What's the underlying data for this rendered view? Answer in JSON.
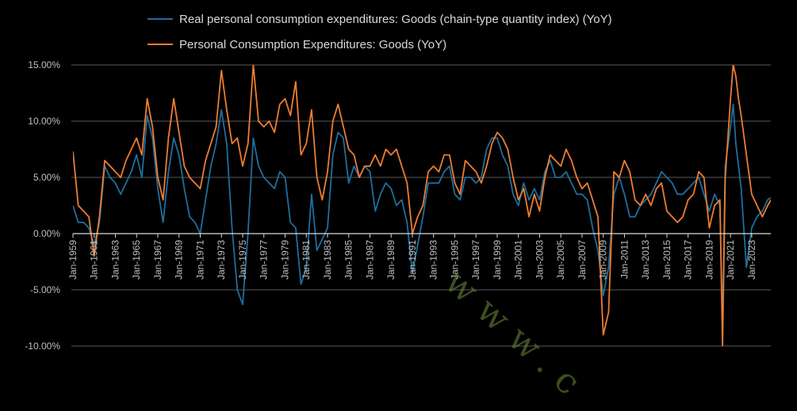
{
  "chart_data": {
    "type": "line",
    "title": "",
    "xlabel": "",
    "ylabel": "",
    "ylim": [
      -10,
      15
    ],
    "xlim": [
      1959,
      2024.8
    ],
    "y_ticks": [
      15,
      10,
      5,
      0,
      -5,
      -10
    ],
    "y_tick_labels": [
      "15.00%",
      "10.00%",
      "5.00%",
      "0.00%",
      "-5.00%",
      "-10.00%"
    ],
    "x_ticks": [
      1959,
      1961,
      1963,
      1965,
      1967,
      1969,
      1971,
      1973,
      1975,
      1977,
      1979,
      1981,
      1983,
      1985,
      1987,
      1989,
      1991,
      1993,
      1995,
      1997,
      1999,
      2001,
      2003,
      2005,
      2007,
      2009,
      2011,
      2013,
      2015,
      2017,
      2019,
      2021,
      2023
    ],
    "x_tick_labels": [
      "Jan-1959",
      "Jan-1961",
      "Jan-1963",
      "Jan-1965",
      "Jan-1967",
      "Jan-1969",
      "Jan-1971",
      "Jan-1973",
      "Jan-1975",
      "Jan-1977",
      "Jan-1979",
      "Jan-1981",
      "Jan-1983",
      "Jan-1985",
      "Jan-1987",
      "Jan-1989",
      "Jan-1991",
      "Jan-1993",
      "Jan-1995",
      "Jan-1997",
      "Jan-1999",
      "Jan-2001",
      "Jan-2003",
      "Jan-2005",
      "Jan-2007",
      "Jan-2009",
      "Jan-2011",
      "Jan-2013",
      "Jan-2015",
      "Jan-2017",
      "Jan-2019",
      "Jan-2021",
      "Jan-2023"
    ],
    "grid": true,
    "legend_position": "top",
    "series": [
      {
        "name": "Real personal consumption expenditures: Goods (chain-type quantity index) (YoY)",
        "color": "#1f6e9c",
        "points": [
          [
            1959,
            2.5
          ],
          [
            1959.5,
            1.0
          ],
          [
            1960,
            1.0
          ],
          [
            1960.5,
            0.5
          ],
          [
            1961,
            -1.0
          ],
          [
            1961.5,
            1.0
          ],
          [
            1962,
            6.0
          ],
          [
            1962.5,
            5.0
          ],
          [
            1963,
            4.5
          ],
          [
            1963.5,
            3.5
          ],
          [
            1964,
            4.5
          ],
          [
            1964.5,
            5.5
          ],
          [
            1965,
            7.0
          ],
          [
            1965.5,
            5.0
          ],
          [
            1966,
            10.5
          ],
          [
            1966.5,
            8.5
          ],
          [
            1967,
            4.0
          ],
          [
            1967.5,
            1.0
          ],
          [
            1968,
            5.5
          ],
          [
            1968.5,
            8.5
          ],
          [
            1969,
            7.0
          ],
          [
            1969.5,
            4.0
          ],
          [
            1970,
            1.5
          ],
          [
            1970.5,
            1.0
          ],
          [
            1971,
            0.0
          ],
          [
            1971.5,
            3.0
          ],
          [
            1972,
            6.0
          ],
          [
            1972.5,
            8.0
          ],
          [
            1973,
            11.0
          ],
          [
            1973.5,
            8.0
          ],
          [
            1974,
            0.5
          ],
          [
            1974.5,
            -5.0
          ],
          [
            1975,
            -6.3
          ],
          [
            1975.5,
            0.0
          ],
          [
            1976,
            8.5
          ],
          [
            1976.5,
            6.0
          ],
          [
            1977,
            5.0
          ],
          [
            1977.5,
            4.5
          ],
          [
            1978,
            4.0
          ],
          [
            1978.5,
            5.5
          ],
          [
            1979,
            5.0
          ],
          [
            1979.5,
            1.0
          ],
          [
            1980,
            0.5
          ],
          [
            1980.5,
            -4.5
          ],
          [
            1981,
            -3.0
          ],
          [
            1981.5,
            3.5
          ],
          [
            1982,
            -1.5
          ],
          [
            1982.5,
            -0.5
          ],
          [
            1983,
            0.5
          ],
          [
            1983.5,
            7.0
          ],
          [
            1984,
            9.0
          ],
          [
            1984.5,
            8.5
          ],
          [
            1985,
            4.5
          ],
          [
            1985.5,
            6.0
          ],
          [
            1986,
            5.0
          ],
          [
            1986.5,
            6.0
          ],
          [
            1987,
            5.5
          ],
          [
            1987.5,
            2.0
          ],
          [
            1988,
            3.5
          ],
          [
            1988.5,
            4.5
          ],
          [
            1989,
            4.0
          ],
          [
            1989.5,
            2.5
          ],
          [
            1990,
            3.0
          ],
          [
            1990.5,
            1.0
          ],
          [
            1991,
            -3.5
          ],
          [
            1991.5,
            -1.0
          ],
          [
            1992,
            1.5
          ],
          [
            1992.5,
            4.5
          ],
          [
            1993,
            4.5
          ],
          [
            1993.5,
            4.5
          ],
          [
            1994,
            5.5
          ],
          [
            1994.5,
            6.0
          ],
          [
            1995,
            3.5
          ],
          [
            1995.5,
            3.0
          ],
          [
            1996,
            5.0
          ],
          [
            1996.5,
            5.0
          ],
          [
            1997,
            4.5
          ],
          [
            1997.5,
            5.0
          ],
          [
            1998,
            7.5
          ],
          [
            1998.5,
            8.5
          ],
          [
            1999,
            8.5
          ],
          [
            1999.5,
            7.0
          ],
          [
            2000,
            6.0
          ],
          [
            2000.5,
            3.5
          ],
          [
            2001,
            2.5
          ],
          [
            2001.5,
            4.5
          ],
          [
            2002,
            3.0
          ],
          [
            2002.5,
            4.0
          ],
          [
            2003,
            3.0
          ],
          [
            2003.5,
            5.5
          ],
          [
            2004,
            6.5
          ],
          [
            2004.5,
            5.0
          ],
          [
            2005,
            5.0
          ],
          [
            2005.5,
            5.5
          ],
          [
            2006,
            4.5
          ],
          [
            2006.5,
            3.5
          ],
          [
            2007,
            3.5
          ],
          [
            2007.5,
            3.0
          ],
          [
            2008,
            0.5
          ],
          [
            2008.5,
            -1.5
          ],
          [
            2009,
            -5.5
          ],
          [
            2009.5,
            -3.0
          ],
          [
            2010,
            3.5
          ],
          [
            2010.5,
            5.0
          ],
          [
            2011,
            3.5
          ],
          [
            2011.5,
            1.5
          ],
          [
            2012,
            1.5
          ],
          [
            2012.5,
            2.5
          ],
          [
            2013,
            3.0
          ],
          [
            2013.5,
            3.5
          ],
          [
            2014,
            4.5
          ],
          [
            2014.5,
            5.5
          ],
          [
            2015,
            5.0
          ],
          [
            2015.5,
            4.5
          ],
          [
            2016,
            3.5
          ],
          [
            2016.5,
            3.5
          ],
          [
            2017,
            4.0
          ],
          [
            2017.5,
            4.5
          ],
          [
            2018,
            5.0
          ],
          [
            2018.5,
            3.5
          ],
          [
            2019,
            2.0
          ],
          [
            2019.5,
            3.5
          ],
          [
            2020,
            2.5
          ],
          [
            2020.25,
            -8.0
          ],
          [
            2020.5,
            6.0
          ],
          [
            2021,
            9.5
          ],
          [
            2021.25,
            11.5
          ],
          [
            2021.5,
            8.0
          ],
          [
            2022,
            4.0
          ],
          [
            2022.5,
            -3.0
          ],
          [
            2023,
            0.5
          ],
          [
            2023.5,
            1.5
          ],
          [
            2024,
            2.0
          ],
          [
            2024.5,
            3.0
          ],
          [
            2024.8,
            3.2
          ]
        ]
      },
      {
        "name": "Personal Consumption Expenditures: Goods (YoY)",
        "color": "#ed7d31",
        "points": [
          [
            1959,
            7.3
          ],
          [
            1959.5,
            2.5
          ],
          [
            1960,
            2.0
          ],
          [
            1960.5,
            1.5
          ],
          [
            1961,
            -2.0
          ],
          [
            1961.5,
            1.5
          ],
          [
            1962,
            6.5
          ],
          [
            1962.5,
            6.0
          ],
          [
            1963,
            5.5
          ],
          [
            1963.5,
            5.0
          ],
          [
            1964,
            6.5
          ],
          [
            1964.5,
            7.5
          ],
          [
            1965,
            8.5
          ],
          [
            1965.5,
            7.0
          ],
          [
            1966,
            12.0
          ],
          [
            1966.5,
            9.5
          ],
          [
            1967,
            5.0
          ],
          [
            1967.5,
            3.0
          ],
          [
            1968,
            8.5
          ],
          [
            1968.5,
            12.0
          ],
          [
            1969,
            9.0
          ],
          [
            1969.5,
            6.0
          ],
          [
            1970,
            5.0
          ],
          [
            1970.5,
            4.5
          ],
          [
            1971,
            4.0
          ],
          [
            1971.5,
            6.5
          ],
          [
            1972,
            8.0
          ],
          [
            1972.5,
            9.5
          ],
          [
            1973,
            14.5
          ],
          [
            1973.5,
            11.0
          ],
          [
            1974,
            8.0
          ],
          [
            1974.5,
            8.5
          ],
          [
            1975,
            6.0
          ],
          [
            1975.5,
            8.0
          ],
          [
            1976,
            15.0
          ],
          [
            1976.5,
            10.0
          ],
          [
            1977,
            9.5
          ],
          [
            1977.5,
            10.0
          ],
          [
            1978,
            9.0
          ],
          [
            1978.5,
            11.5
          ],
          [
            1979,
            12.0
          ],
          [
            1979.5,
            10.5
          ],
          [
            1980,
            13.5
          ],
          [
            1980.5,
            7.0
          ],
          [
            1981,
            8.0
          ],
          [
            1981.5,
            11.0
          ],
          [
            1982,
            5.0
          ],
          [
            1982.5,
            3.0
          ],
          [
            1983,
            5.5
          ],
          [
            1983.5,
            10.0
          ],
          [
            1984,
            11.5
          ],
          [
            1984.5,
            9.5
          ],
          [
            1985,
            7.5
          ],
          [
            1985.5,
            7.0
          ],
          [
            1986,
            5.0
          ],
          [
            1986.5,
            6.0
          ],
          [
            1987,
            6.0
          ],
          [
            1987.5,
            7.0
          ],
          [
            1988,
            6.0
          ],
          [
            1988.5,
            7.5
          ],
          [
            1989,
            7.0
          ],
          [
            1989.5,
            7.5
          ],
          [
            1990,
            6.0
          ],
          [
            1990.5,
            4.5
          ],
          [
            1991,
            0.0
          ],
          [
            1991.5,
            1.5
          ],
          [
            1992,
            2.5
          ],
          [
            1992.5,
            5.5
          ],
          [
            1993,
            6.0
          ],
          [
            1993.5,
            5.5
          ],
          [
            1994,
            7.0
          ],
          [
            1994.5,
            7.0
          ],
          [
            1995,
            4.5
          ],
          [
            1995.5,
            3.5
          ],
          [
            1996,
            6.5
          ],
          [
            1996.5,
            6.0
          ],
          [
            1997,
            5.5
          ],
          [
            1997.5,
            4.5
          ],
          [
            1998,
            6.0
          ],
          [
            1998.5,
            8.0
          ],
          [
            1999,
            9.0
          ],
          [
            1999.5,
            8.5
          ],
          [
            2000,
            7.5
          ],
          [
            2000.5,
            5.0
          ],
          [
            2001,
            3.0
          ],
          [
            2001.5,
            4.0
          ],
          [
            2002,
            1.5
          ],
          [
            2002.5,
            3.5
          ],
          [
            2003,
            2.0
          ],
          [
            2003.5,
            5.0
          ],
          [
            2004,
            7.0
          ],
          [
            2004.5,
            6.5
          ],
          [
            2005,
            6.0
          ],
          [
            2005.5,
            7.5
          ],
          [
            2006,
            6.5
          ],
          [
            2006.5,
            5.0
          ],
          [
            2007,
            4.0
          ],
          [
            2007.5,
            4.5
          ],
          [
            2008,
            3.0
          ],
          [
            2008.5,
            1.5
          ],
          [
            2009,
            -9.0
          ],
          [
            2009.5,
            -7.0
          ],
          [
            2010,
            5.5
          ],
          [
            2010.5,
            5.0
          ],
          [
            2011,
            6.5
          ],
          [
            2011.5,
            5.5
          ],
          [
            2012,
            3.0
          ],
          [
            2012.5,
            2.5
          ],
          [
            2013,
            3.5
          ],
          [
            2013.5,
            2.5
          ],
          [
            2014,
            4.0
          ],
          [
            2014.5,
            4.5
          ],
          [
            2015,
            2.0
          ],
          [
            2015.5,
            1.5
          ],
          [
            2016,
            1.0
          ],
          [
            2016.5,
            1.5
          ],
          [
            2017,
            3.0
          ],
          [
            2017.5,
            3.5
          ],
          [
            2018,
            5.5
          ],
          [
            2018.5,
            5.0
          ],
          [
            2019,
            0.5
          ],
          [
            2019.5,
            2.5
          ],
          [
            2020,
            3.0
          ],
          [
            2020.25,
            -10.0
          ],
          [
            2020.5,
            5.0
          ],
          [
            2021,
            12.0
          ],
          [
            2021.25,
            15.0
          ],
          [
            2021.5,
            14.0
          ],
          [
            2021.75,
            12.0
          ],
          [
            2022,
            10.5
          ],
          [
            2022.5,
            7.0
          ],
          [
            2023,
            3.5
          ],
          [
            2023.5,
            2.5
          ],
          [
            2024,
            1.5
          ],
          [
            2024.5,
            2.5
          ],
          [
            2024.8,
            3.0
          ]
        ]
      }
    ],
    "watermark": "www.c"
  }
}
